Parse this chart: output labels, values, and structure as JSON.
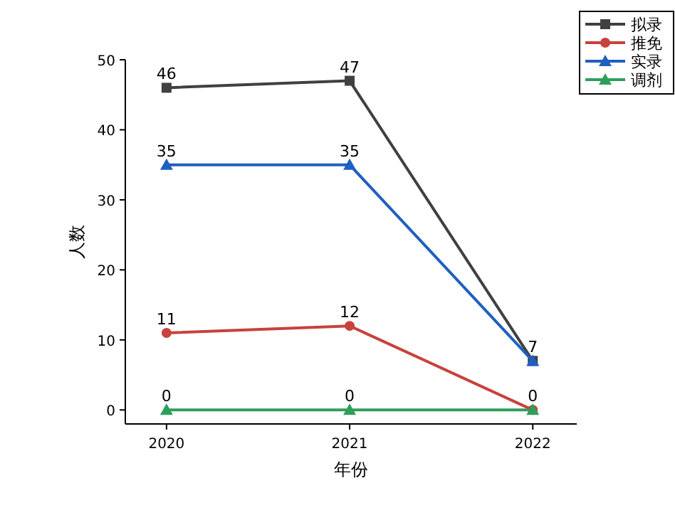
{
  "chart_data": {
    "type": "line",
    "xlabel": "年份",
    "ylabel": "人数",
    "x": [
      2020,
      2021,
      2022
    ],
    "xlim": [
      2019.775,
      2022.24
    ],
    "xticks": [
      2020,
      2021,
      2022
    ],
    "ylim": [
      -2,
      50
    ],
    "yticks": [
      0,
      10,
      20,
      30,
      40,
      50
    ],
    "grid": false,
    "legend": "top right",
    "line_style": "solid",
    "series": [
      {
        "name": "拟录",
        "color": "#404040",
        "marker": "square",
        "values": [
          46,
          47,
          7
        ],
        "value_labels": [
          "46",
          "47",
          "7"
        ]
      },
      {
        "name": "推免",
        "color": "#c8413c",
        "marker": "circle",
        "values": [
          11,
          12,
          0
        ],
        "value_labels": [
          "11",
          "12",
          "0"
        ]
      },
      {
        "name": "实录",
        "color": "#1f5fbf",
        "marker": "triangle",
        "values": [
          35,
          35,
          7
        ],
        "value_labels": [
          "35",
          "35",
          null
        ]
      },
      {
        "name": "调剂",
        "color": "#2e9e5b",
        "marker": "triangle",
        "values": [
          0,
          0,
          0
        ],
        "value_labels": [
          "0",
          "0",
          null
        ]
      }
    ]
  }
}
